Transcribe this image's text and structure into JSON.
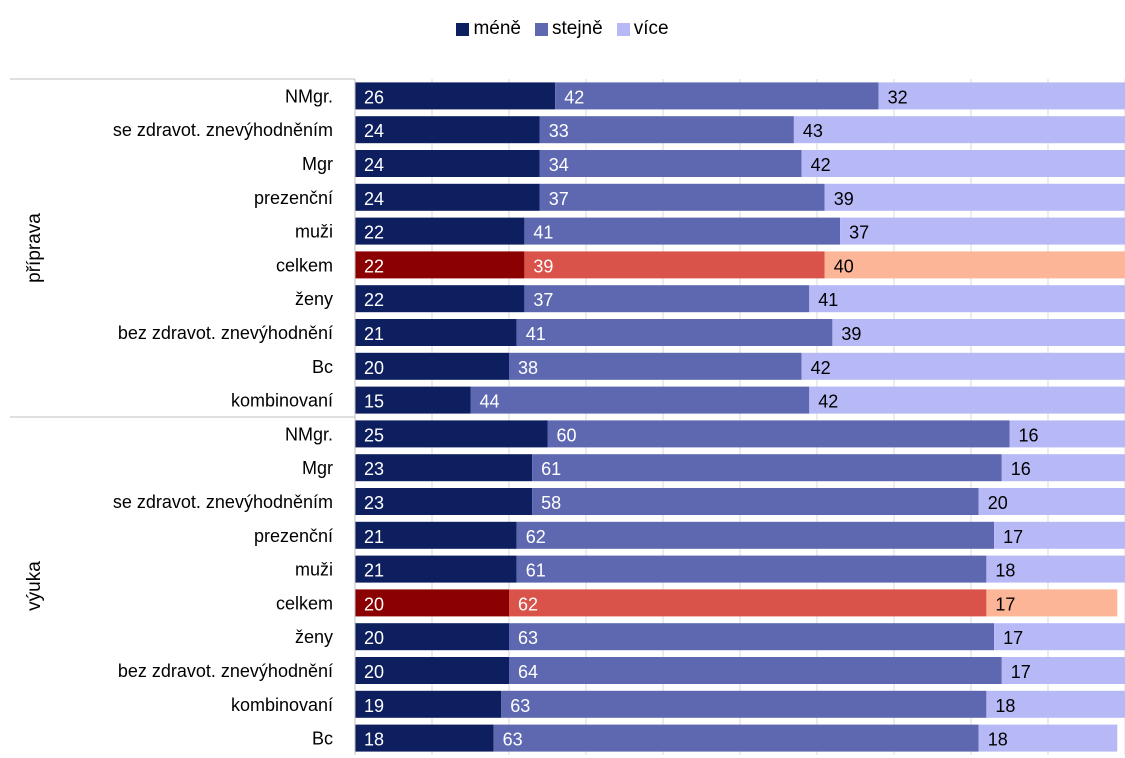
{
  "colors": {
    "mene": "#0d1f5e",
    "stejne": "#5e68b1",
    "vice": "#b7b9f7",
    "hl_mene": "#8b0000",
    "hl_stejne": "#d9534a",
    "hl_vice": "#fdb597",
    "grid": "#d9d9d9",
    "axis": "#bfbfbf"
  },
  "legend": [
    {
      "label": "méně",
      "color_key": "mene"
    },
    {
      "label": "stejně",
      "color_key": "stejne"
    },
    {
      "label": "více",
      "color_key": "vice"
    }
  ],
  "chart_data": {
    "type": "bar",
    "orientation": "horizontal",
    "stacked": true,
    "xlim": [
      0,
      100
    ],
    "grid": true,
    "legend_position": "top",
    "series": [
      {
        "name": "méně"
      },
      {
        "name": "stejně"
      },
      {
        "name": "více"
      }
    ],
    "groups": [
      {
        "label": "příprava",
        "rows": [
          {
            "label": "NMgr.",
            "values": [
              26,
              42,
              32
            ]
          },
          {
            "label": "se zdravot. znevýhodněním",
            "values": [
              24,
              33,
              43
            ]
          },
          {
            "label": "Mgr",
            "values": [
              24,
              34,
              42
            ]
          },
          {
            "label": "prezenční",
            "values": [
              24,
              37,
              39
            ]
          },
          {
            "label": "muži",
            "values": [
              22,
              41,
              37
            ]
          },
          {
            "label": "celkem",
            "values": [
              22,
              39,
              40
            ],
            "highlight": true
          },
          {
            "label": "ženy",
            "values": [
              22,
              37,
              41
            ]
          },
          {
            "label": "bez zdravot. znevýhodnění",
            "values": [
              21,
              41,
              39
            ]
          },
          {
            "label": "Bc",
            "values": [
              20,
              38,
              42
            ]
          },
          {
            "label": "kombinovaní",
            "values": [
              15,
              44,
              42
            ]
          }
        ]
      },
      {
        "label": "výuka",
        "rows": [
          {
            "label": "NMgr.",
            "values": [
              25,
              60,
              16
            ]
          },
          {
            "label": "Mgr",
            "values": [
              23,
              61,
              16
            ]
          },
          {
            "label": "se zdravot. znevýhodněním",
            "values": [
              23,
              58,
              20
            ]
          },
          {
            "label": "prezenční",
            "values": [
              21,
              62,
              17
            ]
          },
          {
            "label": "muži",
            "values": [
              21,
              61,
              18
            ]
          },
          {
            "label": "celkem",
            "values": [
              20,
              62,
              17
            ],
            "highlight": true
          },
          {
            "label": "ženy",
            "values": [
              20,
              63,
              17
            ]
          },
          {
            "label": "bez zdravot. znevýhodnění",
            "values": [
              20,
              64,
              17
            ]
          },
          {
            "label": "kombinovaní",
            "values": [
              19,
              63,
              18
            ]
          },
          {
            "label": "Bc",
            "values": [
              18,
              63,
              18
            ]
          }
        ]
      }
    ]
  }
}
